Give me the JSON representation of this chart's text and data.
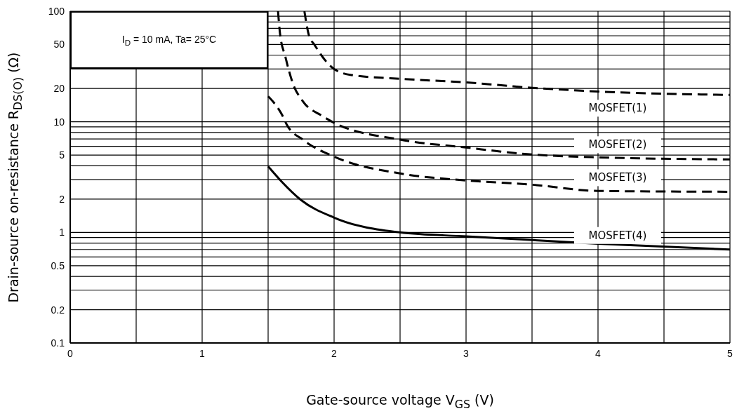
{
  "chart_data": {
    "type": "line",
    "xlabel": "Gate-source voltage V$_{GS}$ (V)",
    "ylabel": "Drain-source on-resistance R$_{DS(O)}$ (Ω)",
    "annotations": [
      "I$_{D}$ = 10 mA, Ta= 25°C"
    ],
    "series": [
      {
        "name": "MOSFET(1)",
        "color": "#000000",
        "line_style": "dashed",
        "x": [
          1.775,
          1.81,
          1.85,
          1.95,
          2,
          2.13,
          2.5,
          3,
          3.5,
          4,
          5
        ],
        "values": [
          100,
          60,
          50,
          34,
          30,
          26.5,
          24.5,
          22.7,
          20.3,
          18.8,
          17.5
        ]
      },
      {
        "name": "MOSFET(2)",
        "color": "#000000",
        "line_style": "dashed",
        "x": [
          1.575,
          1.59,
          1.63,
          1.69,
          1.76,
          1.91,
          2,
          2.5,
          3,
          3.5,
          4,
          5
        ],
        "values": [
          100,
          63,
          39,
          21.8,
          15.5,
          11.3,
          9.8,
          6.9,
          5.85,
          5.06,
          4.77,
          4.57
        ]
      },
      {
        "name": "MOSFET(3)",
        "color": "#000000",
        "line_style": "dashed",
        "x": [
          1.5,
          1.61,
          1.64,
          1.77,
          2,
          2.5,
          3,
          3.5,
          4,
          5
        ],
        "values": [
          17,
          11.3,
          9.5,
          6.8,
          4.84,
          3.41,
          2.95,
          2.7,
          2.37,
          2.33
        ]
      },
      {
        "name": "MOSFET(4)",
        "color": "#000000",
        "line_style": "solid",
        "x": [
          1.5,
          1.6,
          1.75,
          2,
          2.5,
          3,
          4,
          5
        ],
        "values": [
          3.95,
          2.9,
          1.96,
          1.36,
          1.0,
          0.92,
          0.79,
          0.7
        ]
      }
    ],
    "xlim": [
      0,
      5
    ],
    "xticks": [
      0,
      {
        "value": 0.5,
        "label": null
      },
      1,
      {
        "value": 1.5,
        "label": null
      },
      2,
      {
        "value": 2.5,
        "label": null
      },
      3,
      {
        "value": 3.5,
        "label": null
      },
      4,
      {
        "value": 4.5,
        "label": null
      },
      5
    ],
    "ylim": [
      0.1,
      100
    ],
    "yticks": [
      0.1,
      0.2,
      {
        "value": 0.3,
        "label": null
      },
      {
        "value": 0.4,
        "label": null
      },
      0.5,
      {
        "value": 0.6,
        "label": null
      },
      {
        "value": 0.7,
        "label": null
      },
      {
        "value": 0.8,
        "label": null
      },
      {
        "value": 0.9,
        "label": null
      },
      1,
      2,
      {
        "value": 3,
        "label": null
      },
      {
        "value": 4,
        "label": null
      },
      5,
      {
        "value": 6,
        "label": null
      },
      {
        "value": 7,
        "label": null
      },
      {
        "value": 8,
        "label": null
      },
      {
        "value": 9,
        "label": null
      },
      10,
      20,
      {
        "value": 30,
        "label": null
      },
      {
        "value": 40,
        "label": null
      },
      50,
      {
        "value": 60,
        "label": null
      },
      {
        "value": 70,
        "label": null
      },
      {
        "value": 80,
        "label": null
      },
      {
        "value": 90,
        "label": null
      },
      100
    ],
    "log": true,
    "grid": true,
    "legend": false,
    "marker": "none"
  }
}
